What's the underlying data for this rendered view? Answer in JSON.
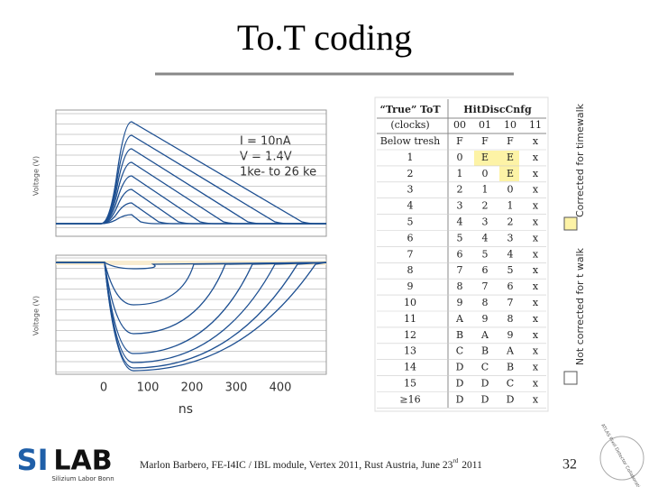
{
  "title": "To.T coding",
  "plot": {
    "annotation": [
      "I = 10nA",
      "V = 1.4V",
      "1ke- to 26 ke"
    ],
    "upper_ylabel": "Voltage (V)",
    "lower_ylabel": "Voltage (V)",
    "xticks": [
      "0",
      "100",
      "200",
      "300",
      "400"
    ],
    "xlabel": "ns"
  },
  "table": {
    "header": [
      "“True” ToT",
      "HitDiscCnfg"
    ],
    "subheader": [
      "(clocks)",
      "00",
      "01",
      "10",
      "11"
    ],
    "rows": [
      [
        "Below tresh",
        "F",
        "F",
        "F",
        "x"
      ],
      [
        "1",
        "0",
        "E",
        "E",
        "x"
      ],
      [
        "2",
        "1",
        "0",
        "E",
        "x"
      ],
      [
        "3",
        "2",
        "1",
        "0",
        "x"
      ],
      [
        "4",
        "3",
        "2",
        "1",
        "x"
      ],
      [
        "5",
        "4",
        "3",
        "2",
        "x"
      ],
      [
        "6",
        "5",
        "4",
        "3",
        "x"
      ],
      [
        "7",
        "6",
        "5",
        "4",
        "x"
      ],
      [
        "8",
        "7",
        "6",
        "5",
        "x"
      ],
      [
        "9",
        "8",
        "7",
        "6",
        "x"
      ],
      [
        "10",
        "9",
        "8",
        "7",
        "x"
      ],
      [
        "11",
        "A",
        "9",
        "8",
        "x"
      ],
      [
        "12",
        "B",
        "A",
        "9",
        "x"
      ],
      [
        "13",
        "C",
        "B",
        "A",
        "x"
      ],
      [
        "14",
        "D",
        "C",
        "B",
        "x"
      ],
      [
        "15",
        "D",
        "D",
        "C",
        "x"
      ],
      [
        "≥16",
        "D",
        "D",
        "D",
        "x"
      ]
    ]
  },
  "legend": {
    "corrected": "Corrected for timewalk",
    "not_corrected": "Not corrected for t walk"
  },
  "footer": {
    "citation": "Marlon Barbero, FE-I4IC / IBL module, Vertex 2011, Rust Austria, June 23",
    "superscript": "rd",
    "year": "2011",
    "page": "32"
  },
  "logo": {
    "si": "SI",
    "lab": "LAB",
    "subtitle": "Silizium Labor Bonn",
    "atlas": "ATLAS Pixel Detector Collaboration"
  }
}
